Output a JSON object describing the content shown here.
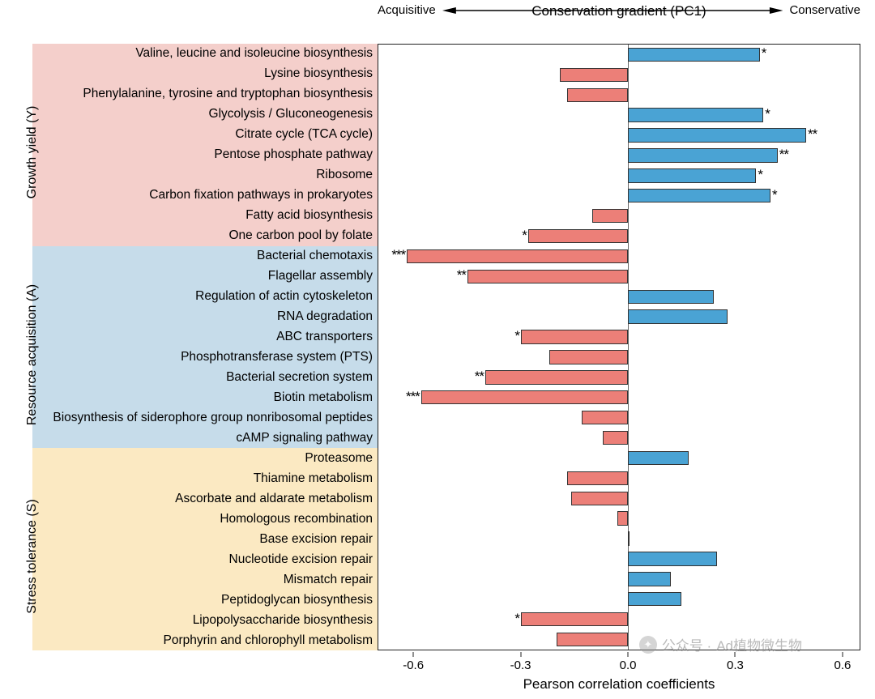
{
  "chart": {
    "type": "horizontal-bar",
    "top_axis": {
      "center_label": "Conservation gradient (PC1)",
      "left_label": "Acquisitive",
      "right_label": "Conservative"
    },
    "x_axis": {
      "title": "Pearson correlation coefficients",
      "min": -0.7,
      "max": 0.65,
      "ticks": [
        -0.6,
        -0.3,
        0.0,
        0.3,
        0.6
      ],
      "tick_labels": [
        "-0.6",
        "-0.3",
        "0.0",
        "0.3",
        "0.6"
      ]
    },
    "colors": {
      "positive_bar": "#4aa3d4",
      "negative_bar": "#ec7f78",
      "bar_border": "#333333",
      "plot_border": "#222222",
      "background": "#ffffff",
      "group_bg": {
        "growth": "#f4cfcb",
        "resource": "#c6dcea",
        "stress": "#fbe9c2"
      }
    },
    "font": {
      "family": "Arial",
      "label_size": 15.5,
      "axis_title_size": 17,
      "tick_size": 15
    },
    "groups": [
      {
        "id": "growth",
        "label": "Growth yield (Y)",
        "bg_key": "growth",
        "count": 10
      },
      {
        "id": "resource",
        "label": "Resource acquisition (A)",
        "bg_key": "resource",
        "count": 10
      },
      {
        "id": "stress",
        "label": "Stress tolerance (S)",
        "bg_key": "stress",
        "count": 10
      }
    ],
    "rows": [
      {
        "group": "growth",
        "label": "Valine, leucine and isoleucine biosynthesis",
        "value": 0.37,
        "sig": "*"
      },
      {
        "group": "growth",
        "label": "Lysine biosynthesis",
        "value": -0.19,
        "sig": ""
      },
      {
        "group": "growth",
        "label": "Phenylalanine, tyrosine and tryptophan biosynthesis",
        "value": -0.17,
        "sig": ""
      },
      {
        "group": "growth",
        "label": "Glycolysis / Gluconeogenesis",
        "value": 0.38,
        "sig": "*"
      },
      {
        "group": "growth",
        "label": "Citrate cycle (TCA cycle)",
        "value": 0.5,
        "sig": "**"
      },
      {
        "group": "growth",
        "label": "Pentose phosphate pathway",
        "value": 0.42,
        "sig": "**"
      },
      {
        "group": "growth",
        "label": "Ribosome",
        "value": 0.36,
        "sig": "*"
      },
      {
        "group": "growth",
        "label": "Carbon fixation pathways in prokaryotes",
        "value": 0.4,
        "sig": "*"
      },
      {
        "group": "growth",
        "label": "Fatty acid biosynthesis",
        "value": -0.1,
        "sig": ""
      },
      {
        "group": "growth",
        "label": "One carbon pool by folate",
        "value": -0.28,
        "sig": "*"
      },
      {
        "group": "resource",
        "label": "Bacterial chemotaxis",
        "value": -0.62,
        "sig": "***"
      },
      {
        "group": "resource",
        "label": "Flagellar assembly",
        "value": -0.45,
        "sig": "**"
      },
      {
        "group": "resource",
        "label": "Regulation of actin cytoskeleton",
        "value": 0.24,
        "sig": ""
      },
      {
        "group": "resource",
        "label": "RNA degradation",
        "value": 0.28,
        "sig": ""
      },
      {
        "group": "resource",
        "label": "ABC transporters",
        "value": -0.3,
        "sig": "*"
      },
      {
        "group": "resource",
        "label": "Phosphotransferase system (PTS)",
        "value": -0.22,
        "sig": ""
      },
      {
        "group": "resource",
        "label": "Bacterial secretion system",
        "value": -0.4,
        "sig": "**"
      },
      {
        "group": "resource",
        "label": "Biotin metabolism",
        "value": -0.58,
        "sig": "***"
      },
      {
        "group": "resource",
        "label": "Biosynthesis of siderophore group nonribosomal peptides",
        "value": -0.13,
        "sig": ""
      },
      {
        "group": "resource",
        "label": "cAMP signaling pathway",
        "value": -0.07,
        "sig": ""
      },
      {
        "group": "stress",
        "label": "Proteasome",
        "value": 0.17,
        "sig": ""
      },
      {
        "group": "stress",
        "label": "Thiamine metabolism",
        "value": -0.17,
        "sig": ""
      },
      {
        "group": "stress",
        "label": "Ascorbate and aldarate metabolism",
        "value": -0.16,
        "sig": ""
      },
      {
        "group": "stress",
        "label": "Homologous recombination",
        "value": -0.03,
        "sig": ""
      },
      {
        "group": "stress",
        "label": "Base excision repair",
        "value": 0.005,
        "sig": ""
      },
      {
        "group": "stress",
        "label": "Nucleotide excision repair",
        "value": 0.25,
        "sig": ""
      },
      {
        "group": "stress",
        "label": "Mismatch repair",
        "value": 0.12,
        "sig": ""
      },
      {
        "group": "stress",
        "label": "Peptidoglycan biosynthesis",
        "value": 0.15,
        "sig": ""
      },
      {
        "group": "stress",
        "label": "Lipopolysaccharide biosynthesis",
        "value": -0.3,
        "sig": "*"
      },
      {
        "group": "stress",
        "label": "Porphyrin and chlorophyll metabolism",
        "value": -0.2,
        "sig": ""
      }
    ]
  },
  "watermark": {
    "prefix": "公众号 · ",
    "text": "Ad植物微生物"
  }
}
